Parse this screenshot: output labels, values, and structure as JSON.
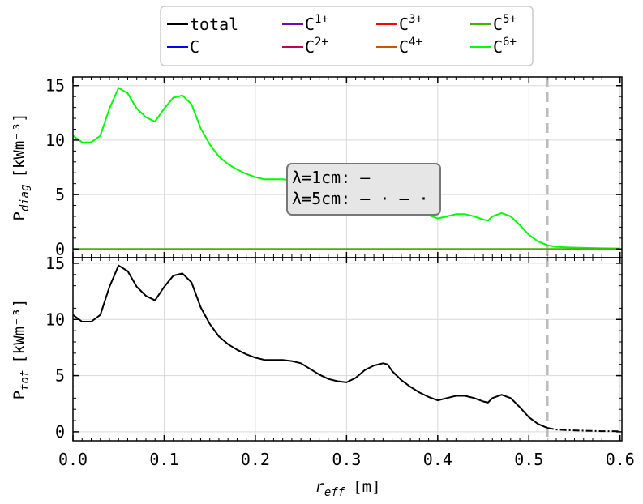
{
  "chart_data": {
    "type": "line",
    "xlabel": {
      "main": "r",
      "sub": "eff",
      "unit": "[m]"
    },
    "x_ticks": [
      "0.0",
      "0.1",
      "0.2",
      "0.3",
      "0.4",
      "0.5",
      "0.6"
    ],
    "xlim": [
      0.0,
      0.602
    ],
    "separatrix_x": 0.52,
    "legend": [
      {
        "key": "total",
        "label": "total",
        "sup": "",
        "color": "#000000"
      },
      {
        "key": "C0",
        "label": "C",
        "sup": "",
        "color": "#0000ff"
      },
      {
        "key": "C1",
        "label": "C",
        "sup": "1+",
        "color": "#6a0dad"
      },
      {
        "key": "C2",
        "label": "C",
        "sup": "2+",
        "color": "#c0005a"
      },
      {
        "key": "C3",
        "label": "C",
        "sup": "3+",
        "color": "#ff0000"
      },
      {
        "key": "C4",
        "label": "C",
        "sup": "4+",
        "color": "#cc5500"
      },
      {
        "key": "C5",
        "label": "C",
        "sup": "5+",
        "color": "#4caf00"
      },
      {
        "key": "C6",
        "label": "C",
        "sup": "6+",
        "color": "#00ff00"
      }
    ],
    "annotation": {
      "line1": "λ=1cm: —",
      "line2": "λ=5cm: — · — ·"
    },
    "panels": [
      {
        "id": "top",
        "ylabel": {
          "main": "P",
          "sub": "diag",
          "unit": "[kWm⁻³]"
        },
        "ylim": [
          -0.8,
          15.8
        ],
        "y_ticks": [
          0,
          5,
          10,
          15
        ],
        "series": [
          {
            "key": "C6",
            "style": "solid",
            "x": [
              0.0,
              0.01,
              0.02,
              0.03,
              0.04,
              0.05,
              0.06,
              0.07,
              0.08,
              0.09,
              0.1,
              0.11,
              0.12,
              0.13,
              0.14,
              0.15,
              0.16,
              0.17,
              0.18,
              0.19,
              0.2,
              0.21,
              0.22,
              0.23,
              0.24
            ],
            "y": [
              10.4,
              9.8,
              9.8,
              10.4,
              12.9,
              14.8,
              14.3,
              12.9,
              12.1,
              11.7,
              12.9,
              13.9,
              14.1,
              13.3,
              11.1,
              9.6,
              8.5,
              7.8,
              7.3,
              6.9,
              6.6,
              6.4,
              6.4,
              6.4,
              6.3
            ]
          },
          {
            "key": "C6",
            "style": "faint",
            "x": [
              0.24,
              0.25,
              0.26,
              0.27,
              0.28,
              0.29,
              0.3,
              0.31,
              0.32,
              0.33,
              0.34,
              0.345
            ],
            "y": [
              6.3,
              6.1,
              5.6,
              5.1,
              4.7,
              4.5,
              4.4,
              4.8,
              5.5,
              5.9,
              6.1,
              6.0
            ]
          },
          {
            "key": "C6",
            "style": "solid",
            "x": [
              0.345,
              0.35,
              0.36,
              0.37,
              0.38,
              0.39,
              0.4,
              0.41,
              0.42,
              0.43,
              0.44,
              0.45,
              0.455,
              0.46,
              0.47,
              0.48,
              0.49,
              0.5,
              0.51,
              0.52,
              0.53,
              0.54,
              0.56,
              0.58,
              0.6
            ],
            "y": [
              6.0,
              5.4,
              4.6,
              4.0,
              3.5,
              3.1,
              2.8,
              3.0,
              3.2,
              3.2,
              3.0,
              2.7,
              2.6,
              3.0,
              3.3,
              3.0,
              2.2,
              1.3,
              0.7,
              0.35,
              0.2,
              0.15,
              0.1,
              0.06,
              0.05
            ]
          },
          {
            "key": "C5",
            "style": "solid",
            "x": [
              0.0,
              0.6
            ],
            "y": [
              0.0,
              0.0
            ]
          }
        ]
      },
      {
        "id": "bottom",
        "ylabel": {
          "main": "P",
          "sub": "tot",
          "unit": "[kWm⁻³]"
        },
        "ylim": [
          -0.8,
          15.5
        ],
        "y_ticks": [
          0,
          5,
          10,
          15
        ],
        "series": [
          {
            "key": "total",
            "style": "solid",
            "x": [
              0.0,
              0.01,
              0.02,
              0.03,
              0.04,
              0.05,
              0.06,
              0.07,
              0.08,
              0.09,
              0.1,
              0.11,
              0.12,
              0.13,
              0.14,
              0.15,
              0.16,
              0.17,
              0.18,
              0.19,
              0.2,
              0.21,
              0.22,
              0.23,
              0.24,
              0.25,
              0.26,
              0.27,
              0.28,
              0.29,
              0.3,
              0.31,
              0.32,
              0.33,
              0.34,
              0.345,
              0.35,
              0.36,
              0.37,
              0.38,
              0.39,
              0.4,
              0.41,
              0.42,
              0.43,
              0.44,
              0.45,
              0.455,
              0.46,
              0.47,
              0.48,
              0.49,
              0.5,
              0.51,
              0.52
            ],
            "y": [
              10.4,
              9.8,
              9.8,
              10.4,
              12.9,
              14.8,
              14.3,
              12.9,
              12.1,
              11.7,
              12.9,
              13.9,
              14.1,
              13.3,
              11.1,
              9.6,
              8.5,
              7.8,
              7.3,
              6.9,
              6.6,
              6.4,
              6.4,
              6.4,
              6.3,
              6.1,
              5.6,
              5.1,
              4.7,
              4.5,
              4.4,
              4.8,
              5.5,
              5.9,
              6.1,
              6.0,
              5.4,
              4.6,
              4.0,
              3.5,
              3.1,
              2.8,
              3.0,
              3.2,
              3.2,
              3.0,
              2.7,
              2.6,
              3.0,
              3.3,
              3.0,
              2.2,
              1.3,
              0.7,
              0.35
            ]
          },
          {
            "key": "total",
            "style": "dashdot",
            "x": [
              0.52,
              0.53,
              0.54,
              0.56,
              0.58,
              0.6
            ],
            "y": [
              0.35,
              0.2,
              0.15,
              0.1,
              0.06,
              0.05
            ]
          }
        ]
      }
    ]
  }
}
